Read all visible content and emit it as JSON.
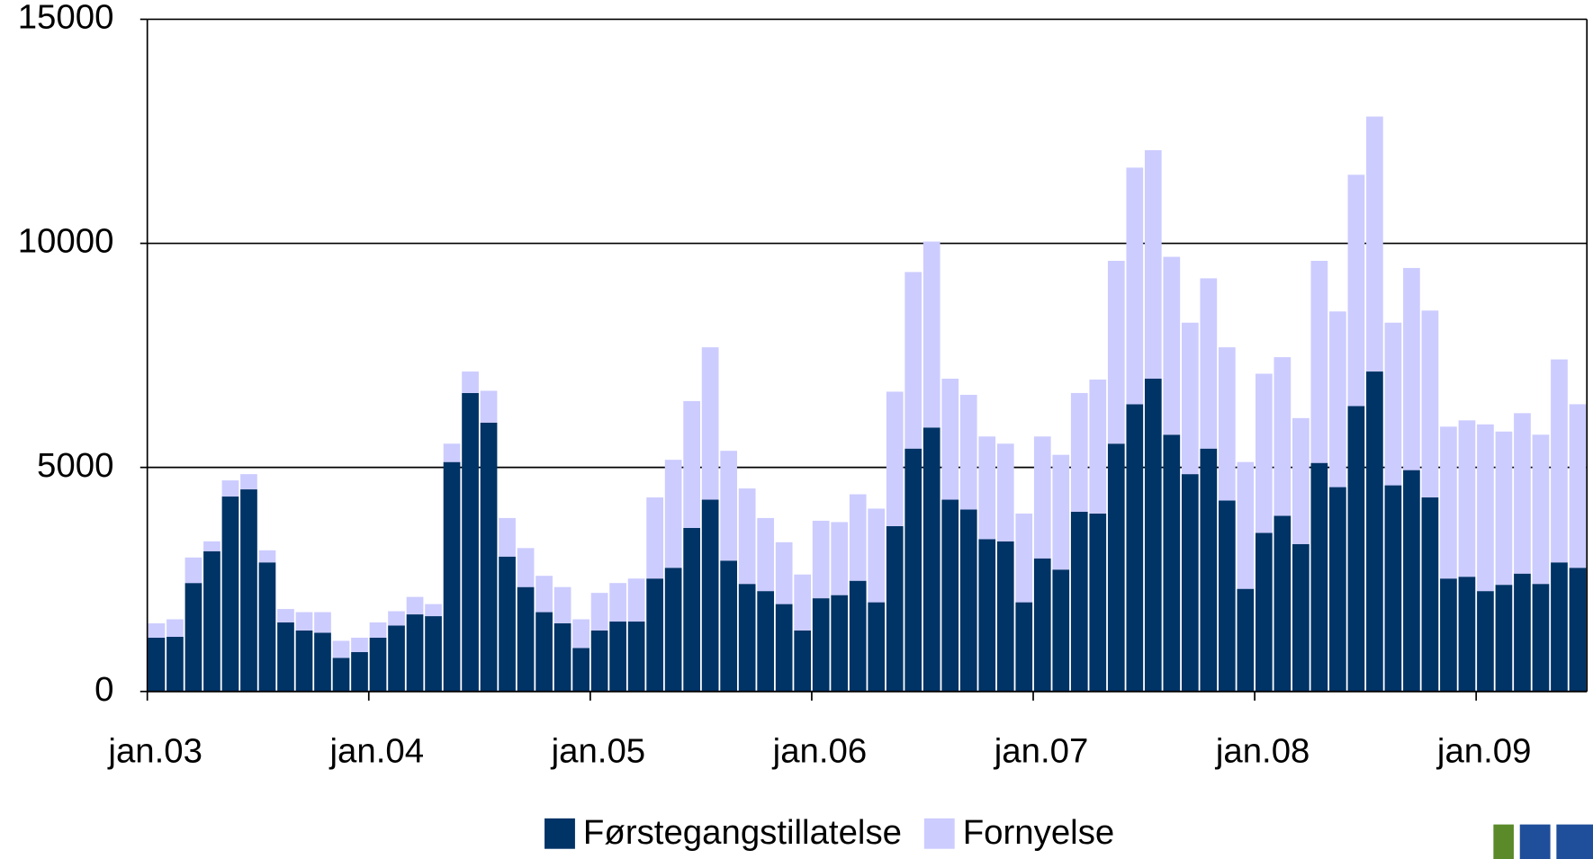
{
  "chart_data": {
    "type": "stacked_bar",
    "categories": [
      "jan.03",
      null,
      null,
      null,
      null,
      null,
      null,
      null,
      null,
      null,
      null,
      null,
      "jan.04",
      null,
      null,
      null,
      null,
      null,
      null,
      null,
      null,
      null,
      null,
      null,
      "jan.05",
      null,
      null,
      null,
      null,
      null,
      null,
      null,
      null,
      null,
      null,
      null,
      "jan.06",
      null,
      null,
      null,
      null,
      null,
      null,
      null,
      null,
      null,
      null,
      null,
      "jan.07",
      null,
      null,
      null,
      null,
      null,
      null,
      null,
      null,
      null,
      null,
      null,
      "jan.08",
      null,
      null,
      null,
      null,
      null,
      null,
      null,
      null,
      null,
      null,
      null,
      "jan.09",
      null,
      null,
      null,
      null,
      null
    ],
    "series": [
      {
        "name": "Førstegangstillatelse",
        "color": "#003366",
        "values": [
          1200,
          1220,
          2420,
          3130,
          4350,
          4510,
          2880,
          1540,
          1360,
          1310,
          750,
          880,
          1200,
          1470,
          1720,
          1680,
          5120,
          6660,
          6000,
          3010,
          2330,
          1770,
          1520,
          970,
          1360,
          1560,
          1560,
          2520,
          2760,
          3650,
          4280,
          2920,
          2400,
          2240,
          1950,
          1360,
          2080,
          2150,
          2470,
          1990,
          3690,
          5420,
          5890,
          4280,
          4060,
          3400,
          3350,
          1990,
          2970,
          2720,
          4010,
          3970,
          5530,
          6410,
          6980,
          5730,
          4850,
          5420,
          4260,
          2290,
          3540,
          3920,
          3290,
          5100,
          4560,
          6370,
          7140,
          4600,
          4940,
          4330,
          2520,
          2560,
          2240,
          2380,
          2630,
          2400,
          2880,
          2760
        ]
      },
      {
        "name": "Fornyelse",
        "color": "#ccccff",
        "values": [
          320,
          390,
          570,
          220,
          360,
          340,
          270,
          300,
          410,
          460,
          380,
          320,
          340,
          320,
          390,
          270,
          410,
          480,
          710,
          860,
          870,
          810,
          810,
          640,
          840,
          860,
          960,
          1810,
          2410,
          2830,
          3400,
          2450,
          2130,
          1630,
          1380,
          1250,
          1730,
          1630,
          1930,
          2090,
          3000,
          3940,
          4150,
          2700,
          2560,
          2290,
          2180,
          1980,
          2720,
          2560,
          2650,
          2990,
          4080,
          5280,
          5100,
          3970,
          3380,
          3800,
          3420,
          2830,
          3550,
          3540,
          2810,
          4510,
          3920,
          5160,
          5690,
          3630,
          4510,
          4170,
          3390,
          3490,
          3720,
          3420,
          3580,
          3330,
          4530,
          3650
        ]
      }
    ],
    "ylim": [
      0,
      15000
    ],
    "yticks": [
      0,
      5000,
      10000,
      15000
    ],
    "grid": true,
    "legend": "bottom"
  }
}
